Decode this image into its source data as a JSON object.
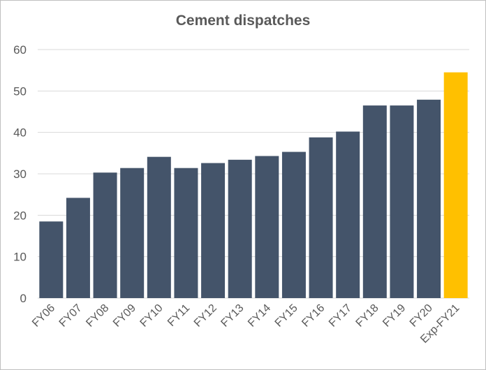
{
  "chart_data": {
    "type": "bar",
    "title": "Cement dispatches",
    "xlabel": "",
    "ylabel": "",
    "categories": [
      "FY06",
      "FY07",
      "FY08",
      "FY09",
      "FY10",
      "FY11",
      "FY12",
      "FY13",
      "FY14",
      "FY15",
      "FY16",
      "FY17",
      "FY18",
      "FY19",
      "FY20",
      "Exp-FY21"
    ],
    "values": [
      18.5,
      24.2,
      30.3,
      31.4,
      34.1,
      31.4,
      32.6,
      33.4,
      34.3,
      35.3,
      38.8,
      40.2,
      46.5,
      46.5,
      47.9,
      54.5
    ],
    "ylim": [
      0,
      60
    ],
    "yticks": [
      0,
      10,
      20,
      30,
      40,
      50,
      60
    ],
    "grid": true,
    "legend": "none",
    "colors": {
      "bar": "#44546a",
      "highlight": "#ffc000",
      "grid": "#d9d9d9",
      "text": "#595959"
    },
    "highlight_index": 15
  }
}
